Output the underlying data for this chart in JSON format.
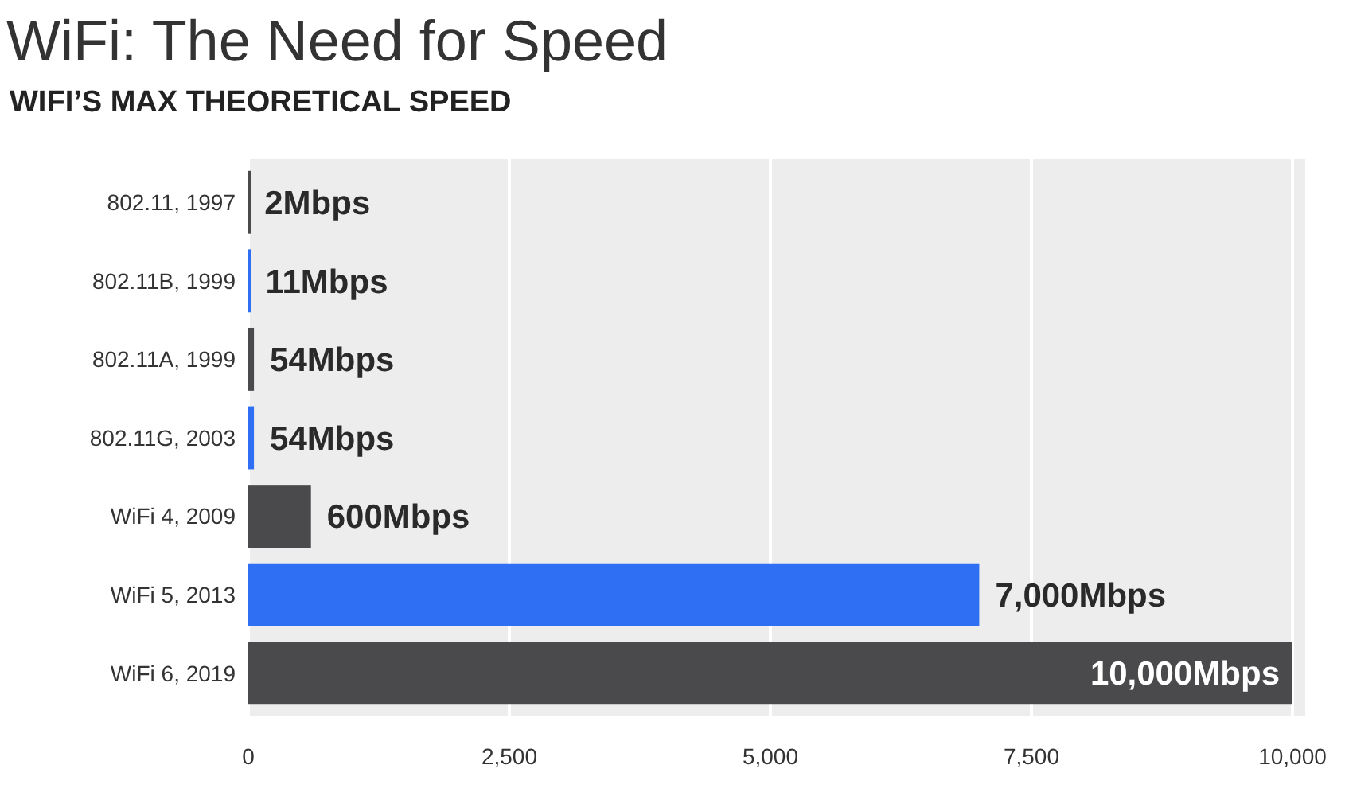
{
  "chart_data": {
    "type": "bar",
    "orientation": "horizontal",
    "title": "WiFi: The Need for Speed",
    "subtitle": "WIFI’S MAX THEORETICAL SPEED",
    "categories": [
      "802.11, 1997",
      "802.11B, 1999",
      "802.11A, 1999",
      "802.11G, 2003",
      "WiFi 4, 2009",
      "WiFi 5, 2013",
      "WiFi 6, 2019"
    ],
    "values": [
      2,
      11,
      54,
      54,
      600,
      7000,
      10000
    ],
    "colors": [
      "#4a4a4d",
      "#2f6ff3",
      "#4a4a4d",
      "#2f6ff3",
      "#4a4a4d",
      "#2f6ff3",
      "#4a4a4d"
    ],
    "value_labels": [
      "2Mbps",
      "11Mbps",
      "54Mbps",
      "54Mbps",
      "600Mbps",
      "7,000Mbps",
      "10,000Mbps"
    ],
    "xlim": [
      0,
      10000
    ],
    "xticks": [
      0,
      {
        "value": 2500,
        "label": "2,500"
      },
      {
        "value": 5000,
        "label": "5,000"
      },
      {
        "value": 7500,
        "label": "7,500"
      },
      {
        "value": 10000,
        "label": "10,000"
      }
    ],
    "grid": "x"
  }
}
